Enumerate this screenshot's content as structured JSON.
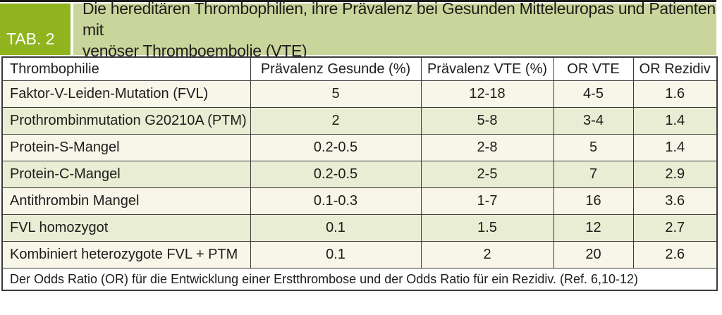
{
  "header": {
    "tab_label": "TAB. 2",
    "title_line1": "Die hereditären Thrombophilien, ihre Prävalenz bei Gesunden Mitteleuropas und Patienten mit",
    "title_line2": "venöser Thromboembolie (VTE)"
  },
  "colors": {
    "tab_green": "#8FB41E",
    "band_green": "#C9D59A",
    "row_cream": "#F7F6E8",
    "row_green": "#E9EDD3",
    "border": "#3B3B3B"
  },
  "table": {
    "headers": [
      "Thrombophilie",
      "Prävalenz Gesunde (%)",
      "Prävalenz VTE (%)",
      "OR VTE",
      "OR Rezidiv"
    ],
    "rows": [
      {
        "cells": [
          "Faktor-V-Leiden-Mutation (FVL)",
          "5",
          "12-18",
          "4-5",
          "1.6"
        ]
      },
      {
        "cells": [
          "Prothrombinmutation G20210A (PTM)",
          "2",
          "5-8",
          "3-4",
          "1.4"
        ]
      },
      {
        "cells": [
          "Protein-S-Mangel",
          "0.2-0.5",
          "2-8",
          "5",
          "1.4"
        ]
      },
      {
        "cells": [
          "Protein-C-Mangel",
          "0.2-0.5",
          "2-5",
          "7",
          "2.9"
        ]
      },
      {
        "cells": [
          "Antithrombin Mangel",
          "0.1-0.3",
          "1-7",
          "16",
          "3.6"
        ]
      },
      {
        "cells": [
          "FVL homozygot",
          "0.1",
          "1.5",
          "12",
          "2.7"
        ]
      },
      {
        "cells": [
          "Kombiniert heterozygote FVL + PTM",
          "0.1",
          "2",
          "20",
          "2.6"
        ]
      }
    ],
    "footnote": "Der Odds Ratio (OR) für die Entwicklung einer Erstthrombose und der Odds Ratio für ein Rezidiv. (Ref. 6,10-12)"
  }
}
